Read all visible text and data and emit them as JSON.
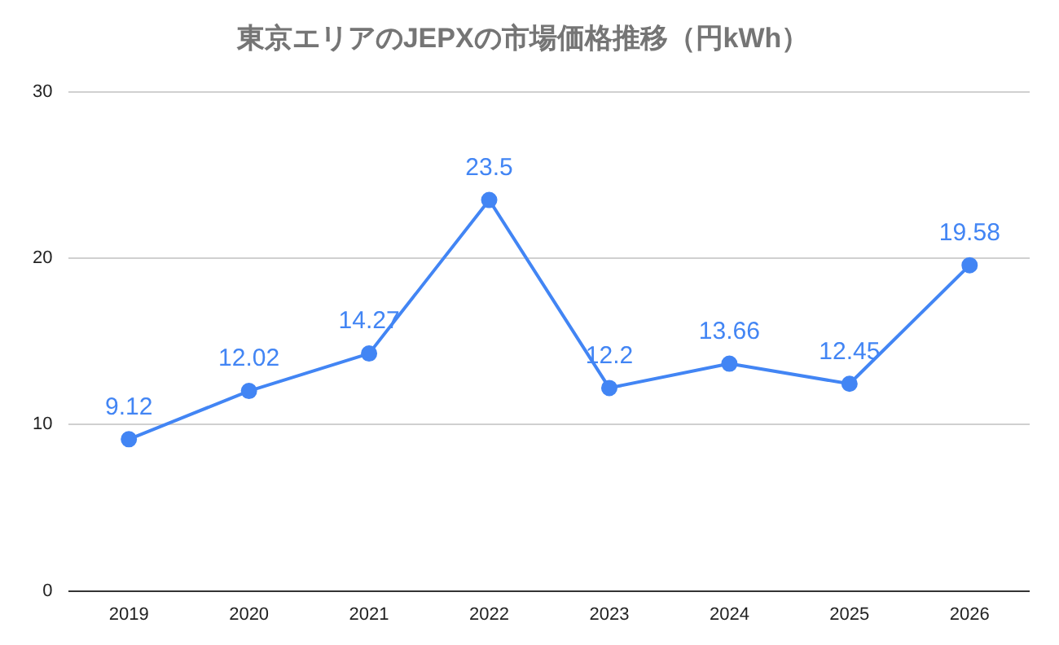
{
  "chart_data": {
    "type": "line",
    "title": "東京エリアのJEPXの市場価格推移（円kWh）",
    "categories": [
      "2019",
      "2020",
      "2021",
      "2022",
      "2023",
      "2024",
      "2025",
      "2026"
    ],
    "series": [
      {
        "color": "#4285f4",
        "values": [
          9.12,
          12.02,
          14.27,
          23.5,
          12.2,
          13.66,
          12.45,
          19.58
        ]
      }
    ],
    "ylim": [
      0,
      30
    ],
    "yticks": [
      0,
      10,
      20,
      30
    ],
    "grid": "y",
    "legend": false,
    "marker": "circle",
    "data_labels": true
  }
}
